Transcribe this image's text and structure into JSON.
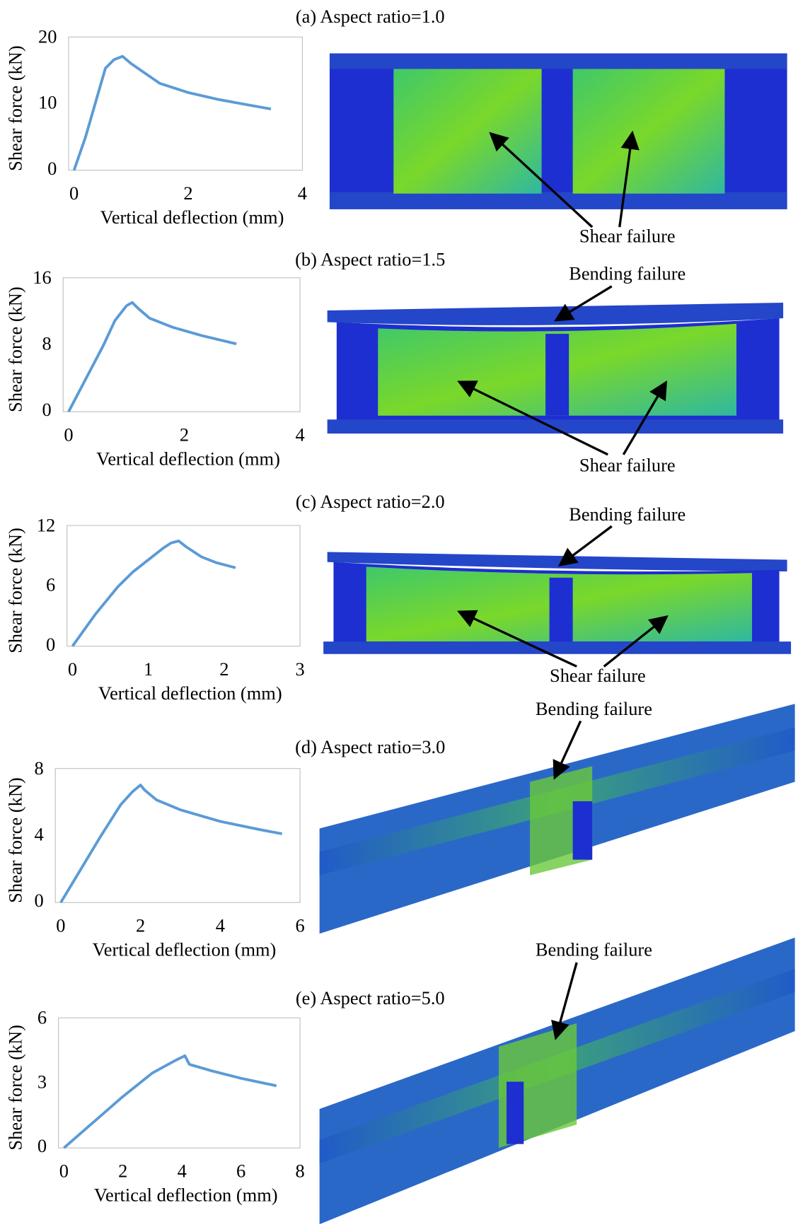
{
  "chart_data": [
    {
      "type": "line",
      "title": "(a) Aspect ratio=1.0",
      "xlabel": "Vertical deflection (mm)",
      "ylabel": "Shear force (kN)",
      "color": "#5b9bd5",
      "x": [
        0,
        0.2,
        0.4,
        0.55,
        0.7,
        0.85,
        1.0,
        1.2,
        1.5,
        2.0,
        2.5,
        3.0,
        3.45
      ],
      "values": [
        0,
        5,
        11,
        15.5,
        16.8,
        17.3,
        16.2,
        15,
        13.2,
        11.8,
        10.8,
        10,
        9.3
      ],
      "xlim": [
        0,
        4
      ],
      "xticks": [
        0,
        2,
        4
      ],
      "ylim": [
        0,
        20
      ],
      "yticks": [
        0,
        10,
        20
      ],
      "grid": false,
      "annotations": [
        "Shear failure"
      ]
    },
    {
      "type": "line",
      "title": "(b) Aspect ratio=1.5",
      "xlabel": "Vertical deflection (mm)",
      "ylabel": "Shear force (kN)",
      "color": "#5b9bd5",
      "x": [
        0,
        0.3,
        0.6,
        0.8,
        1.0,
        1.1,
        1.2,
        1.4,
        1.8,
        2.3,
        2.9
      ],
      "values": [
        0,
        4,
        8,
        11,
        12.8,
        13.2,
        12.5,
        11.3,
        10.2,
        9.2,
        8.2
      ],
      "xlim": [
        0,
        4
      ],
      "xticks": [
        0,
        2,
        4
      ],
      "ylim": [
        0,
        16
      ],
      "yticks": [
        0,
        8,
        16
      ],
      "grid": false,
      "annotations": [
        "Bending failure",
        "Shear failure"
      ]
    },
    {
      "type": "line",
      "title": "(c) Aspect ratio=2.0",
      "xlabel": "Vertical deflection (mm)",
      "ylabel": "Shear force (kN)",
      "color": "#5b9bd5",
      "x": [
        0,
        0.3,
        0.6,
        0.8,
        1.0,
        1.2,
        1.3,
        1.4,
        1.5,
        1.7,
        1.9,
        2.15
      ],
      "values": [
        0,
        3.2,
        6,
        7.5,
        8.7,
        9.9,
        10.4,
        10.6,
        10,
        9,
        8.4,
        7.9
      ],
      "xlim": [
        0,
        3
      ],
      "xticks": [
        0,
        1,
        2,
        3
      ],
      "ylim": [
        0,
        12
      ],
      "yticks": [
        0,
        6,
        12
      ],
      "grid": false,
      "annotations": [
        "Bending failure",
        "Shear failure"
      ]
    },
    {
      "type": "line",
      "title": "(d) Aspect ratio=3.0",
      "xlabel": "Vertical deflection (mm)",
      "ylabel": "Shear force (kN)",
      "color": "#5b9bd5",
      "x": [
        0,
        0.5,
        1.0,
        1.5,
        1.8,
        2.0,
        2.1,
        2.4,
        3.0,
        4.0,
        5.0,
        5.55
      ],
      "values": [
        0,
        2,
        4,
        5.9,
        6.7,
        7.1,
        6.8,
        6.2,
        5.6,
        4.9,
        4.4,
        4.15
      ],
      "xlim": [
        0,
        6
      ],
      "xticks": [
        0,
        2,
        4,
        6
      ],
      "ylim": [
        0,
        8
      ],
      "yticks": [
        0,
        4,
        8
      ],
      "grid": false,
      "annotations": [
        "Bending failure"
      ]
    },
    {
      "type": "line",
      "title": "(e) Aspect ratio=5.0",
      "xlabel": "Vertical deflection (mm)",
      "ylabel": "Shear force (kN)",
      "color": "#5b9bd5",
      "x": [
        0,
        1,
        2,
        3,
        3.8,
        4.1,
        4.25,
        5,
        6,
        7.2
      ],
      "values": [
        0,
        1.2,
        2.4,
        3.5,
        4.1,
        4.3,
        3.9,
        3.6,
        3.25,
        2.9
      ],
      "xlim": [
        0,
        8
      ],
      "xticks": [
        0,
        2,
        4,
        6,
        8
      ],
      "ylim": [
        0,
        6
      ],
      "yticks": [
        0,
        3,
        6
      ],
      "grid": false,
      "annotations": [
        "Bending failure"
      ]
    }
  ]
}
